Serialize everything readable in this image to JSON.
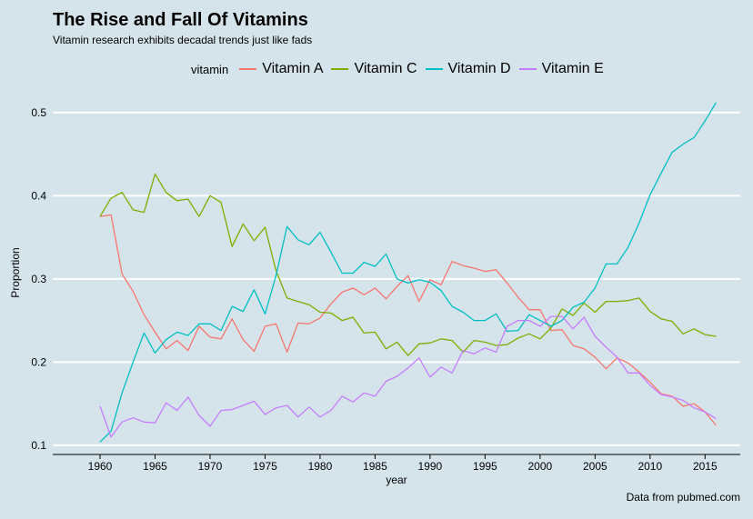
{
  "colors": {
    "background": "#d5e4eb",
    "gridline": "#ffffff",
    "axis": "#000000"
  },
  "chart_data": {
    "type": "line",
    "title": "The Rise and Fall Of Vitamins",
    "subtitle": "Vitamin research exhibits decadal trends just like fads",
    "caption": "Data from pubmed.com",
    "xlabel": "year",
    "ylabel": "Proportion",
    "xlim": [
      1955.7,
      2018.2
    ],
    "ylim": [
      0.089,
      0.526
    ],
    "xticks": [
      1960,
      1965,
      1970,
      1975,
      1980,
      1985,
      1990,
      1995,
      2000,
      2005,
      2010,
      2015
    ],
    "yticks": [
      0.1,
      0.2,
      0.3,
      0.4,
      0.5
    ],
    "xtick_labels": [
      "1960",
      "1965",
      "1970",
      "1975",
      "1980",
      "1985",
      "1990",
      "1995",
      "2000",
      "2005",
      "2010",
      "2015"
    ],
    "ytick_labels": [
      "0.1",
      "0.2",
      "0.3",
      "0.4",
      "0.5"
    ],
    "grid": "horizontal",
    "legend": {
      "title": "vitamin",
      "position": "top"
    },
    "x": [
      1960,
      1961,
      1962,
      1963,
      1964,
      1965,
      1966,
      1967,
      1968,
      1969,
      1970,
      1971,
      1972,
      1973,
      1974,
      1975,
      1976,
      1977,
      1978,
      1979,
      1980,
      1981,
      1982,
      1983,
      1984,
      1985,
      1986,
      1987,
      1988,
      1989,
      1990,
      1991,
      1992,
      1993,
      1994,
      1995,
      1996,
      1997,
      1998,
      1999,
      2000,
      2001,
      2002,
      2003,
      2004,
      2005,
      2006,
      2007,
      2008,
      2009,
      2010,
      2011,
      2012,
      2013,
      2014,
      2015,
      2016
    ],
    "series": [
      {
        "name": "Vitamin A",
        "color": "#f8766d",
        "values": [
          0.375,
          0.377,
          0.306,
          0.285,
          0.257,
          0.236,
          0.216,
          0.226,
          0.214,
          0.243,
          0.23,
          0.228,
          0.252,
          0.227,
          0.213,
          0.243,
          0.246,
          0.212,
          0.247,
          0.246,
          0.253,
          0.27,
          0.284,
          0.289,
          0.281,
          0.289,
          0.276,
          0.291,
          0.304,
          0.273,
          0.299,
          0.293,
          0.321,
          0.316,
          0.313,
          0.309,
          0.311,
          0.295,
          0.278,
          0.263,
          0.263,
          0.238,
          0.239,
          0.22,
          0.216,
          0.206,
          0.192,
          0.205,
          0.199,
          0.188,
          0.176,
          0.162,
          0.159,
          0.147,
          0.15,
          0.14,
          0.124
        ]
      },
      {
        "name": "Vitamin C",
        "color": "#7cae00",
        "values": [
          0.375,
          0.397,
          0.404,
          0.383,
          0.38,
          0.426,
          0.404,
          0.394,
          0.396,
          0.375,
          0.4,
          0.392,
          0.339,
          0.366,
          0.346,
          0.362,
          0.31,
          0.277,
          0.273,
          0.269,
          0.26,
          0.259,
          0.25,
          0.254,
          0.235,
          0.236,
          0.216,
          0.224,
          0.208,
          0.222,
          0.223,
          0.228,
          0.226,
          0.212,
          0.226,
          0.224,
          0.22,
          0.221,
          0.229,
          0.234,
          0.228,
          0.241,
          0.264,
          0.256,
          0.271,
          0.26,
          0.273,
          0.273,
          0.274,
          0.277,
          0.261,
          0.252,
          0.249,
          0.234,
          0.24,
          0.233,
          0.231
        ]
      },
      {
        "name": "Vitamin D",
        "color": "#00bfc4",
        "values": [
          0.104,
          0.117,
          0.163,
          0.2,
          0.235,
          0.211,
          0.227,
          0.236,
          0.232,
          0.246,
          0.246,
          0.238,
          0.267,
          0.261,
          0.287,
          0.258,
          0.304,
          0.363,
          0.347,
          0.341,
          0.356,
          0.332,
          0.307,
          0.307,
          0.32,
          0.315,
          0.33,
          0.3,
          0.295,
          0.299,
          0.296,
          0.286,
          0.267,
          0.26,
          0.25,
          0.25,
          0.258,
          0.237,
          0.238,
          0.257,
          0.25,
          0.243,
          0.25,
          0.266,
          0.272,
          0.289,
          0.318,
          0.318,
          0.338,
          0.367,
          0.401,
          0.427,
          0.452,
          0.462,
          0.47,
          0.49,
          0.512
        ]
      },
      {
        "name": "Vitamin E",
        "color": "#c77cff",
        "values": [
          0.147,
          0.11,
          0.128,
          0.133,
          0.128,
          0.127,
          0.151,
          0.142,
          0.158,
          0.136,
          0.123,
          0.142,
          0.143,
          0.148,
          0.153,
          0.137,
          0.145,
          0.148,
          0.134,
          0.146,
          0.134,
          0.142,
          0.159,
          0.152,
          0.163,
          0.159,
          0.177,
          0.183,
          0.193,
          0.205,
          0.182,
          0.194,
          0.187,
          0.214,
          0.21,
          0.217,
          0.212,
          0.243,
          0.25,
          0.25,
          0.243,
          0.255,
          0.255,
          0.24,
          0.254,
          0.231,
          0.218,
          0.206,
          0.187,
          0.187,
          0.172,
          0.161,
          0.158,
          0.154,
          0.145,
          0.14,
          0.132
        ]
      }
    ]
  }
}
